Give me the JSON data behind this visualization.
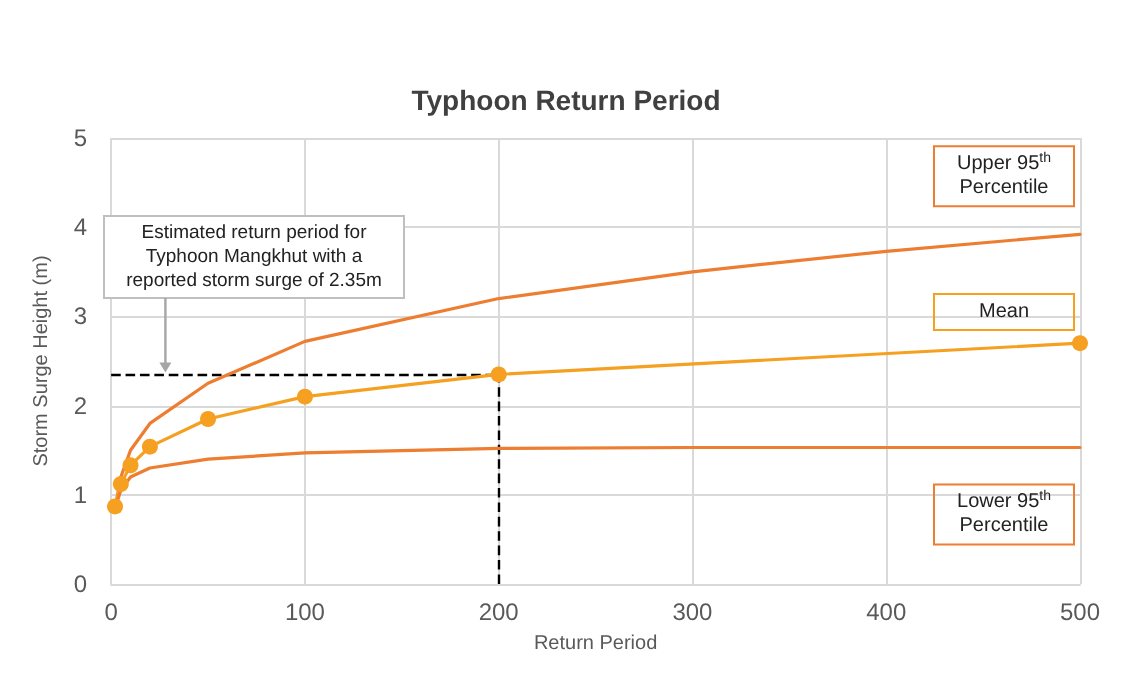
{
  "chart_data": {
    "type": "line",
    "title": "Typhoon Return Period",
    "xlabel": "Return Period",
    "ylabel": "Storm Surge Height (m)",
    "xlim": [
      0,
      500
    ],
    "xticks": [
      0,
      100,
      200,
      300,
      400,
      500
    ],
    "ylim": [
      0,
      5
    ],
    "yticks": [
      0,
      1,
      2,
      3,
      4,
      5
    ],
    "grid": true,
    "line_style": "solid",
    "series": [
      {
        "name": "Upper 95$^{th}$ Percentile",
        "color": "#ed7d31",
        "marker": "none",
        "x": [
          2,
          5,
          10,
          20,
          50,
          100,
          200,
          300,
          400,
          500
        ],
        "values": [
          0.85,
          1.2,
          1.5,
          1.8,
          2.25,
          2.72,
          3.2,
          3.5,
          3.73,
          3.92
        ]
      },
      {
        "name": "Mean",
        "color": "#f5a020",
        "marker": "circle",
        "x": [
          2,
          5,
          10,
          20,
          50,
          100,
          200,
          500
        ],
        "values": [
          0.87,
          1.12,
          1.33,
          1.54,
          1.85,
          2.1,
          2.35,
          2.7
        ]
      },
      {
        "name": "Lower 95$^{th}$ Percentile",
        "color": "#ed7d31",
        "marker": "none",
        "x": [
          2,
          5,
          10,
          20,
          50,
          100,
          200,
          300,
          500
        ],
        "values": [
          0.85,
          1.05,
          1.2,
          1.3,
          1.4,
          1.47,
          1.52,
          1.53,
          1.53
        ]
      }
    ],
    "ref_lines": [
      {
        "axis": "y",
        "value": 2.35,
        "color": "#000000",
        "line_style": "dashed"
      },
      {
        "axis": "x",
        "value": 200,
        "color": "#000000",
        "line_style": "dashed"
      }
    ],
    "annotations": [
      {
        "text": "Estimated return period for Typhoon Mangkhut with a reported storm surge of 2.35m",
        "x": 28,
        "y": 2.35
      }
    ]
  }
}
